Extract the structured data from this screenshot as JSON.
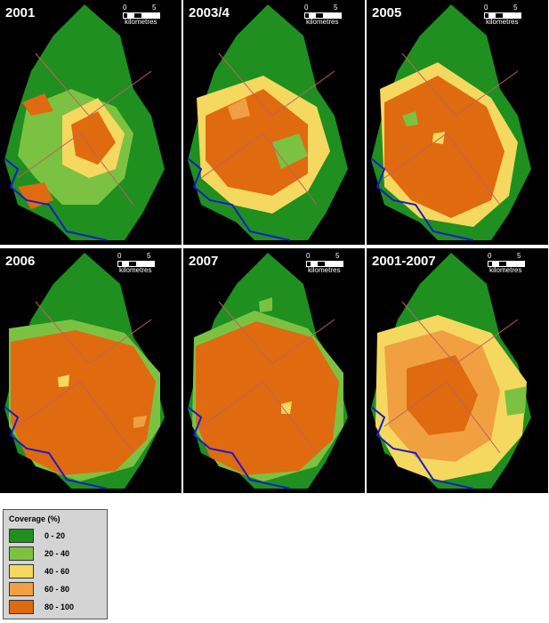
{
  "panels": [
    {
      "title": "2001"
    },
    {
      "title": "2003/4"
    },
    {
      "title": "2005"
    },
    {
      "title": "2006"
    },
    {
      "title": "2007"
    },
    {
      "title": "2001-2007"
    }
  ],
  "scale_bar": {
    "tick_start": "0",
    "tick_end": "5",
    "units": "kilometres"
  },
  "legend": {
    "title": "Coverage (%)",
    "items": [
      {
        "label": "0 - 20",
        "color": "#1f8f1f"
      },
      {
        "label": "20 - 40",
        "color": "#7cc242"
      },
      {
        "label": "40 - 60",
        "color": "#f5d860"
      },
      {
        "label": "60 - 80",
        "color": "#f0a040"
      },
      {
        "label": "80 - 100",
        "color": "#e06a10"
      }
    ]
  },
  "colors": {
    "background": "#000000",
    "roads": "#c06060",
    "coast": "#1a1acc"
  }
}
